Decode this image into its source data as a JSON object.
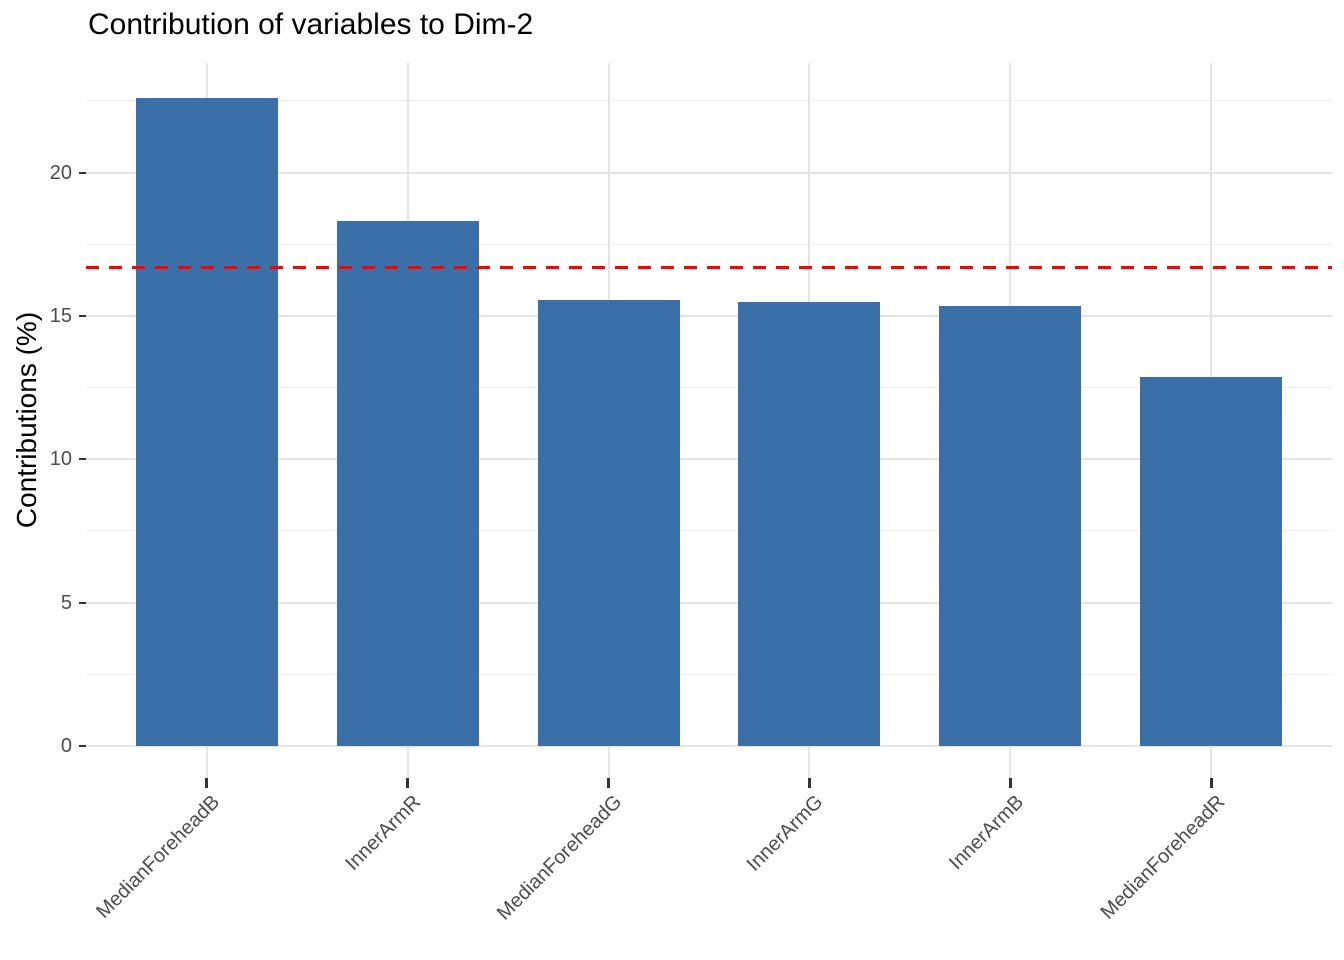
{
  "chart_data": {
    "type": "bar",
    "title": "Contribution of variables to Dim-2",
    "ylabel": "Contributions (%)",
    "xlabel": "",
    "categories": [
      "MedianForeheadB",
      "InnerArmR",
      "MedianForeheadG",
      "InnerArmG",
      "InnerArmB",
      "MedianForeheadR"
    ],
    "values": [
      22.6,
      18.3,
      15.55,
      15.5,
      15.35,
      12.85
    ],
    "yticks": [
      0,
      5,
      10,
      15,
      20
    ],
    "yticks_minor": [
      2.5,
      7.5,
      12.5,
      17.5,
      22.5
    ],
    "ylim": [
      -1.12,
      23.82
    ],
    "bar_color": "#3B6FA8",
    "reference_line": {
      "value": 16.67,
      "color": "#FF0000",
      "style": "dashed"
    },
    "grid": "on",
    "legend": "none"
  },
  "colors": {
    "background": "#FFFFFF",
    "major_grid": "#E4E4E4",
    "minor_grid": "#EFEFEF",
    "axis_text": "#4D4D4D",
    "axis_tick": "#333333",
    "title_text": "#000000"
  }
}
